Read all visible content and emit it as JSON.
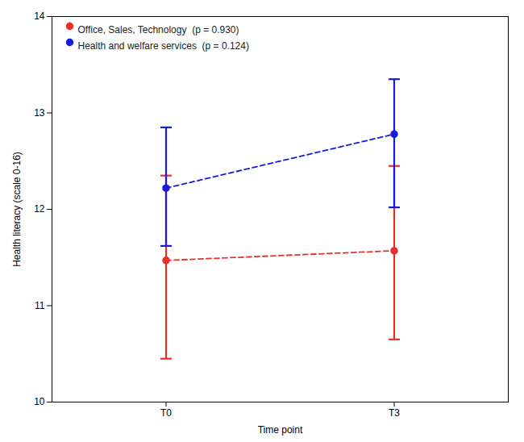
{
  "chart_data": {
    "type": "line",
    "x": [
      0,
      1
    ],
    "xlabel": "Time point",
    "ylabel": "Health literacy (scale 0-16)",
    "xlim": [
      -0.5,
      1.5
    ],
    "xticks": [
      {
        "value": 0,
        "label": "T0"
      },
      {
        "value": 1,
        "label": "T3"
      }
    ],
    "ylim": [
      10,
      14
    ],
    "yticks": [
      10,
      11,
      12,
      13,
      14
    ],
    "line_style": "dashed",
    "marker": "circle",
    "legend": "upper left",
    "grid": false,
    "series": [
      {
        "name": "Office, Sales, Technology  (p = 0.930)",
        "color": "#e8302a",
        "values": [
          11.47,
          11.57
        ],
        "lower": [
          10.45,
          10.65
        ],
        "upper": [
          12.35,
          12.45
        ]
      },
      {
        "name": "Health and welfare services  (p = 0.124)",
        "color": "#1a1adb",
        "values": [
          12.22,
          12.78
        ],
        "lower": [
          11.62,
          12.02
        ],
        "upper": [
          12.85,
          13.35
        ]
      }
    ]
  }
}
